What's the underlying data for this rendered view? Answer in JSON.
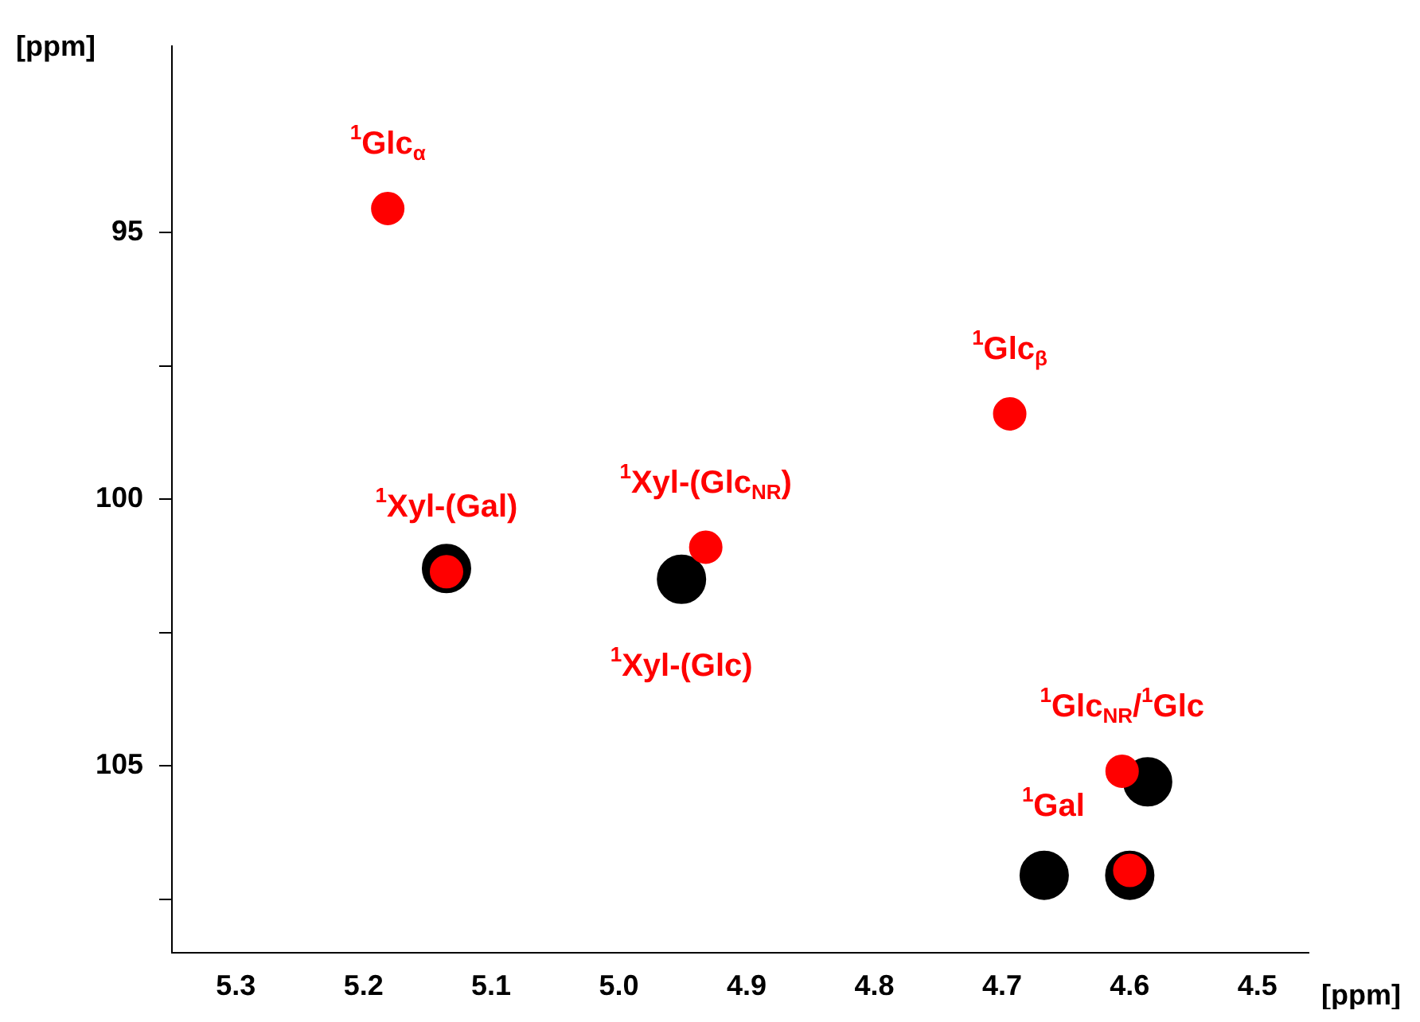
{
  "chart_data": {
    "type": "scatter",
    "xlabel": "[ppm]",
    "ylabel": "[ppm]",
    "marker": "circle",
    "grid": false,
    "legend": false,
    "xlim": [
      5.35,
      4.46
    ],
    "ylim": [
      108.5,
      91.5
    ],
    "xticks": [
      5.3,
      5.2,
      5.1,
      {
        "value": 5,
        "label": "5.0"
      },
      4.9,
      4.8,
      4.7,
      4.6,
      4.5
    ],
    "yticks": [
      95,
      {
        "value": 97.5,
        "label": null
      },
      100,
      {
        "value": 102.5,
        "label": null
      },
      105,
      {
        "value": 107.5,
        "label": null
      }
    ],
    "series": [
      {
        "color": "#000000",
        "x": [
          5.135,
          4.951,
          4.586,
          4.6,
          4.667
        ],
        "values": [
          101.3,
          101.5,
          105.3,
          107.05,
          107.05
        ]
      },
      {
        "color": "#ff0000",
        "x": [
          5.181,
          4.694,
          5.135,
          4.932,
          4.606,
          4.6
        ],
        "values": [
          94.55,
          98.4,
          101.36,
          100.9,
          105.1,
          106.96
        ]
      }
    ],
    "annotations": [
      {
        "text": "$^{1}$Glc$_{α}$",
        "x": 5.181,
        "y": 94.55
      },
      {
        "text": "$^{1}$Glc$_{β}$",
        "x": 4.694,
        "y": 98.4
      },
      {
        "text": "$^{1}$Xyl-(Gal)",
        "x": 5.135,
        "y": 101.36
      },
      {
        "text": "$^{1}$Xyl-(Glc$_{NR}$)",
        "x": 4.932,
        "y": 100.9
      },
      {
        "text": "$^{1}$Xyl-(Glc)",
        "x": 4.951,
        "y": 101.5
      },
      {
        "text": "$^{1}$Glc$_{NR}$/$^{1}$Glc",
        "x": 4.606,
        "y": 105.1
      },
      {
        "text": "$^{1}$Gal",
        "x": 4.6,
        "y": 106.96
      }
    ]
  }
}
